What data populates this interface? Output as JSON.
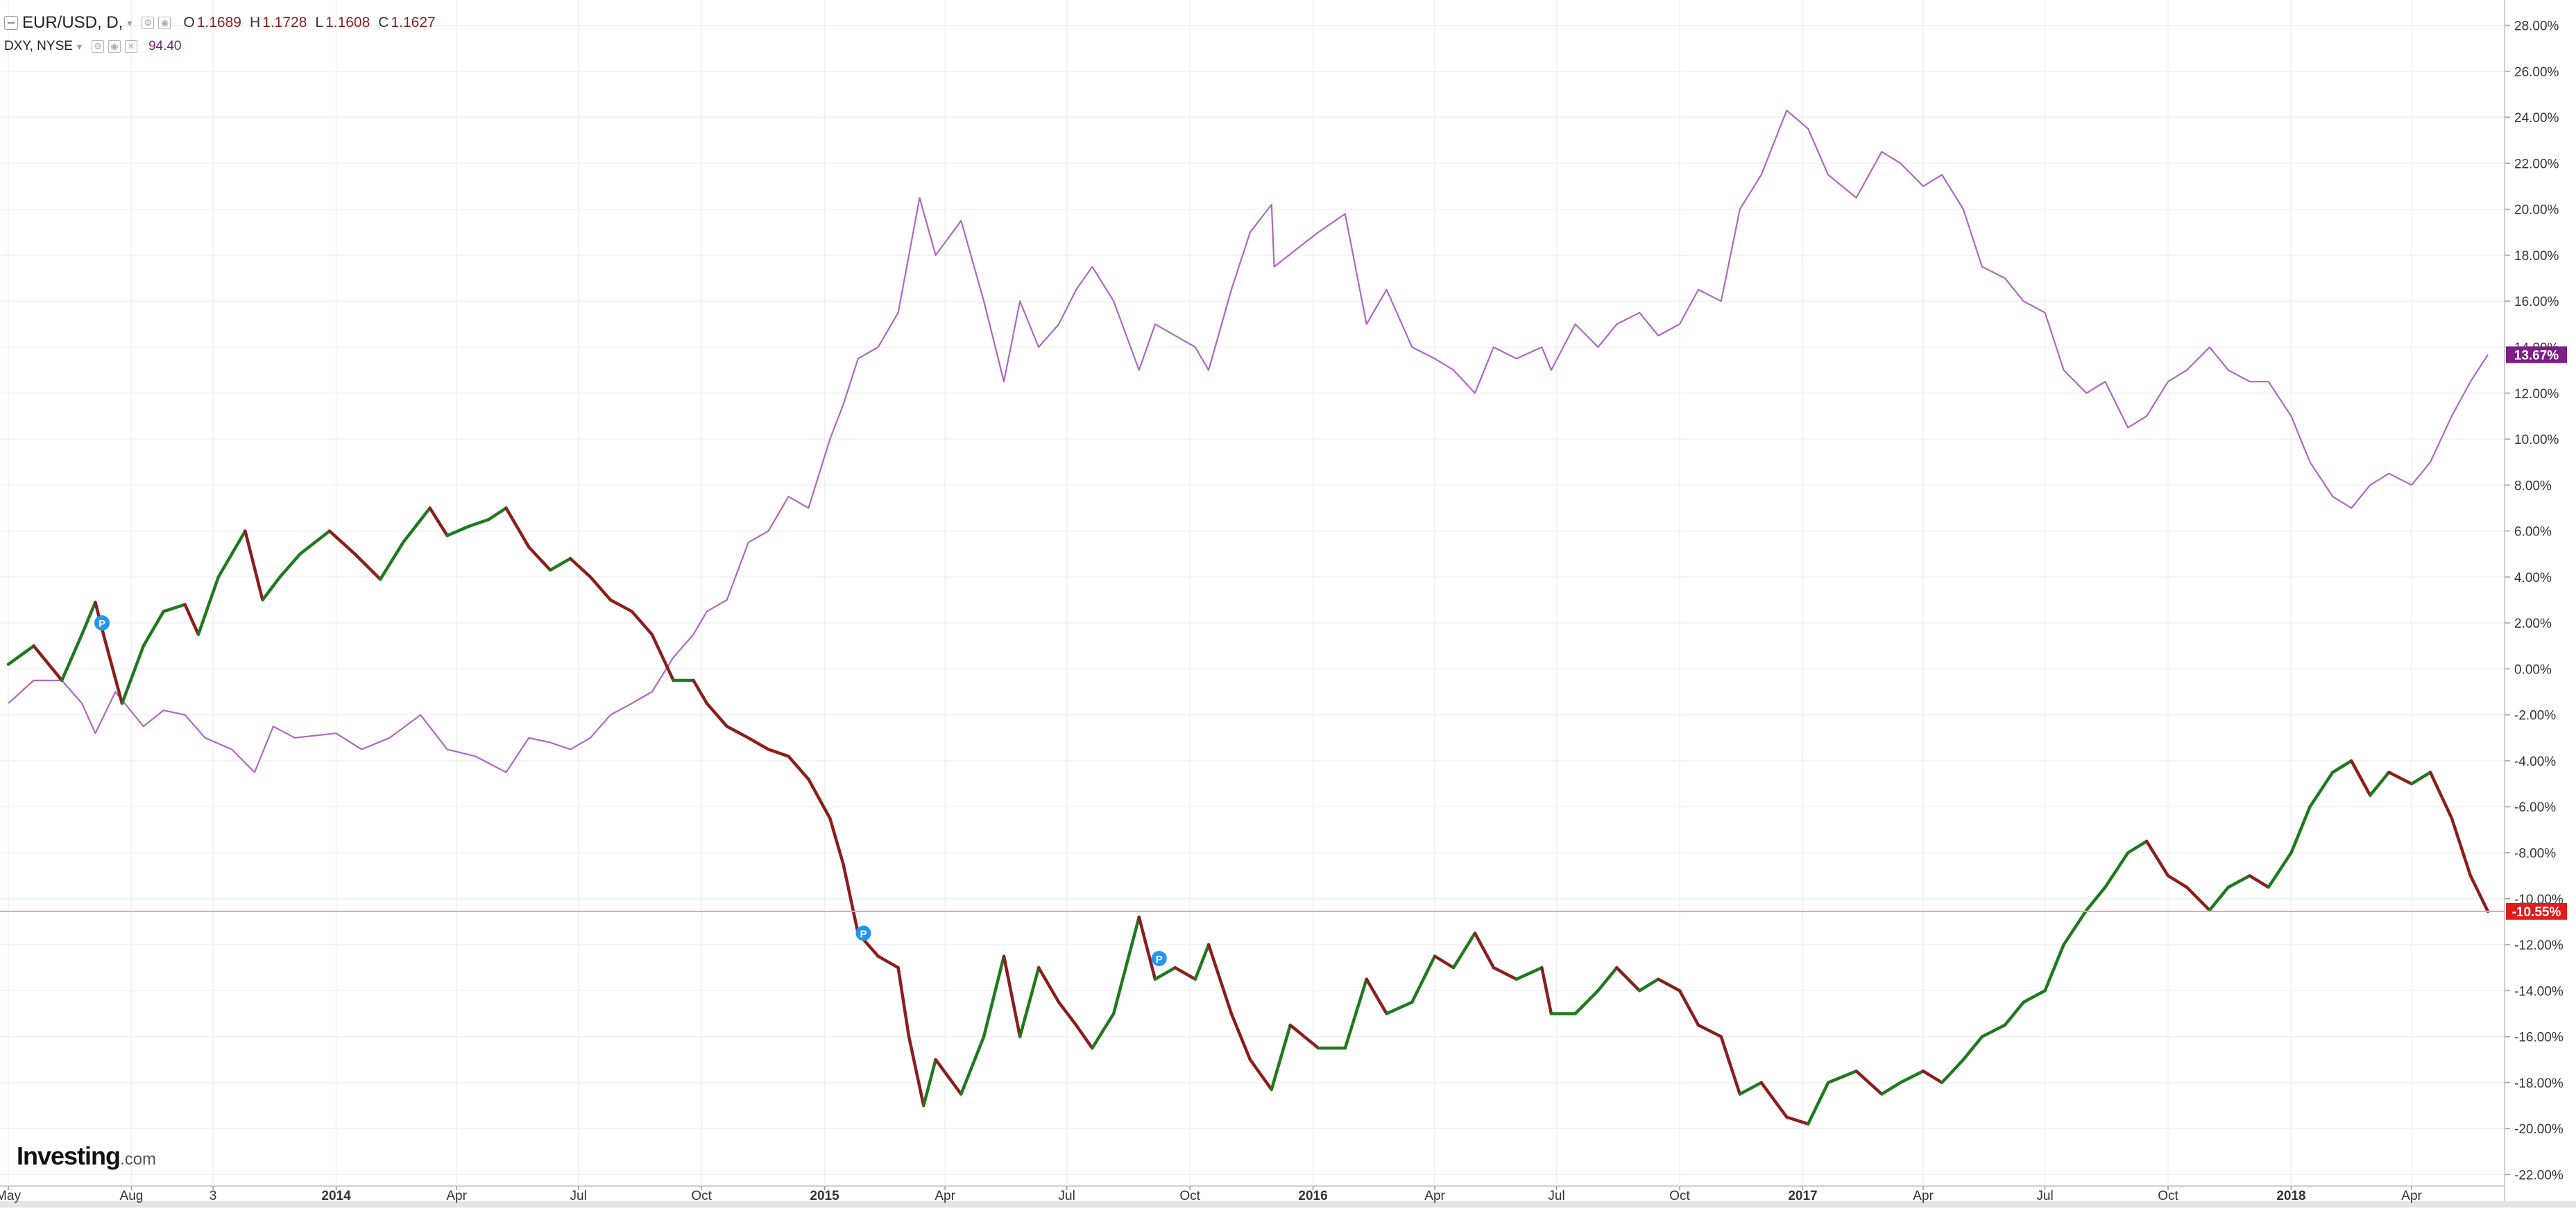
{
  "legend": {
    "main_symbol": "EUR/USD, D,",
    "open_key": "O",
    "open_value": "1.1689",
    "high_key": "H",
    "high_value": "1.1728",
    "low_key": "L",
    "low_value": "1.1608",
    "close_key": "C",
    "close_value": "1.1627",
    "compare_symbol": "DXY, NYSE",
    "compare_value": "94.40"
  },
  "watermark": {
    "brand": "Investing",
    "suffix": ".com"
  },
  "colors": {
    "up": "#1f7a1f",
    "down": "#8b1e1e",
    "dxy": "#b066c3",
    "dxy_tag": "#7b1f85",
    "eur_tag": "#e31b1b",
    "last_line": "#f4a3a3",
    "pin": "#2196f3",
    "grid": "#f1f1f1"
  },
  "chart_data": {
    "type": "line",
    "title": "",
    "y_unit": "%",
    "ylim": [
      -22.5,
      28.5
    ],
    "y_ticks": [
      "28.00%",
      "26.00%",
      "24.00%",
      "22.00%",
      "20.00%",
      "18.00%",
      "16.00%",
      "14.00%",
      "12.00%",
      "10.00%",
      "8.00%",
      "6.00%",
      "4.00%",
      "2.00%",
      "0.00%",
      "-2.00%",
      "-4.00%",
      "-6.00%",
      "-8.00%",
      "-10.00%",
      "-12.00%",
      "-14.00%",
      "-16.00%",
      "-18.00%",
      "-20.00%",
      "-22.00%"
    ],
    "x_range": [
      "2013-05-01",
      "2018-05-28"
    ],
    "x_ticks": [
      {
        "date": "2013-05-01",
        "label": "May"
      },
      {
        "date": "2013-08-01",
        "label": "Aug"
      },
      {
        "date": "2013-10-01",
        "label": "3"
      },
      {
        "date": "2014-01-01",
        "label": "2014"
      },
      {
        "date": "2014-04-01",
        "label": "Apr"
      },
      {
        "date": "2014-07-01",
        "label": "Jul"
      },
      {
        "date": "2014-10-01",
        "label": "Oct"
      },
      {
        "date": "2015-01-01",
        "label": "2015"
      },
      {
        "date": "2015-04-01",
        "label": "Apr"
      },
      {
        "date": "2015-07-01",
        "label": "Jul"
      },
      {
        "date": "2015-10-01",
        "label": "Oct"
      },
      {
        "date": "2016-01-01",
        "label": "2016"
      },
      {
        "date": "2016-04-01",
        "label": "Apr"
      },
      {
        "date": "2016-07-01",
        "label": "Jul"
      },
      {
        "date": "2016-10-01",
        "label": "Oct"
      },
      {
        "date": "2017-01-01",
        "label": "2017"
      },
      {
        "date": "2017-04-01",
        "label": "Apr"
      },
      {
        "date": "2017-07-01",
        "label": "Jul"
      },
      {
        "date": "2017-10-01",
        "label": "Oct"
      },
      {
        "date": "2018-01-01",
        "label": "2018"
      },
      {
        "date": "2018-04-01",
        "label": "Apr"
      }
    ],
    "bold_x_labels": [
      "2014",
      "2015",
      "2016",
      "2017",
      "2018"
    ],
    "series": [
      {
        "name": "EUR/USD, D,",
        "style": "candles",
        "last_label": "-10.55%",
        "points": [
          [
            "2013-05-01",
            0.2
          ],
          [
            "2013-05-20",
            1.0
          ],
          [
            "2013-06-10",
            -0.5
          ],
          [
            "2013-06-25",
            1.5
          ],
          [
            "2013-07-05",
            2.9
          ],
          [
            "2013-07-12",
            1.3
          ],
          [
            "2013-07-25",
            -1.5
          ],
          [
            "2013-08-10",
            1.0
          ],
          [
            "2013-08-25",
            2.5
          ],
          [
            "2013-09-10",
            2.8
          ],
          [
            "2013-09-20",
            1.5
          ],
          [
            "2013-10-05",
            4.0
          ],
          [
            "2013-10-25",
            6.0
          ],
          [
            "2013-11-07",
            3.0
          ],
          [
            "2013-11-20",
            4.0
          ],
          [
            "2013-12-05",
            5.0
          ],
          [
            "2013-12-27",
            6.0
          ],
          [
            "2014-01-15",
            5.0
          ],
          [
            "2014-02-03",
            3.9
          ],
          [
            "2014-02-20",
            5.5
          ],
          [
            "2014-03-12",
            7.0
          ],
          [
            "2014-03-25",
            5.8
          ],
          [
            "2014-04-10",
            6.2
          ],
          [
            "2014-04-25",
            6.5
          ],
          [
            "2014-05-08",
            7.0
          ],
          [
            "2014-05-25",
            5.3
          ],
          [
            "2014-06-10",
            4.3
          ],
          [
            "2014-06-25",
            4.8
          ],
          [
            "2014-07-10",
            4.0
          ],
          [
            "2014-07-25",
            3.0
          ],
          [
            "2014-08-10",
            2.5
          ],
          [
            "2014-08-25",
            1.5
          ],
          [
            "2014-09-10",
            -0.5
          ],
          [
            "2014-09-25",
            -0.5
          ],
          [
            "2014-10-05",
            -1.5
          ],
          [
            "2014-10-20",
            -2.5
          ],
          [
            "2014-11-05",
            -3.0
          ],
          [
            "2014-11-20",
            -3.5
          ],
          [
            "2014-12-05",
            -3.8
          ],
          [
            "2014-12-20",
            -4.8
          ],
          [
            "2015-01-05",
            -6.5
          ],
          [
            "2015-01-15",
            -8.5
          ],
          [
            "2015-01-26",
            -11.5
          ],
          [
            "2015-02-10",
            -12.5
          ],
          [
            "2015-02-25",
            -13.0
          ],
          [
            "2015-03-05",
            -16.0
          ],
          [
            "2015-03-16",
            -19.0
          ],
          [
            "2015-03-25",
            -17.0
          ],
          [
            "2015-04-13",
            -18.5
          ],
          [
            "2015-04-30",
            -16.0
          ],
          [
            "2015-05-15",
            -12.5
          ],
          [
            "2015-05-27",
            -16.0
          ],
          [
            "2015-06-10",
            -13.0
          ],
          [
            "2015-06-25",
            -14.5
          ],
          [
            "2015-07-08",
            -15.5
          ],
          [
            "2015-07-20",
            -16.5
          ],
          [
            "2015-08-05",
            -15.0
          ],
          [
            "2015-08-24",
            -10.8
          ],
          [
            "2015-09-05",
            -13.5
          ],
          [
            "2015-09-20",
            -13.0
          ],
          [
            "2015-10-05",
            -13.5
          ],
          [
            "2015-10-15",
            -12.0
          ],
          [
            "2015-11-01",
            -15.0
          ],
          [
            "2015-11-15",
            -17.0
          ],
          [
            "2015-12-01",
            -18.3
          ],
          [
            "2015-12-15",
            -15.5
          ],
          [
            "2016-01-05",
            -16.5
          ],
          [
            "2016-01-25",
            -16.5
          ],
          [
            "2016-02-10",
            -13.5
          ],
          [
            "2016-02-25",
            -15.0
          ],
          [
            "2016-03-15",
            -14.5
          ],
          [
            "2016-04-01",
            -12.5
          ],
          [
            "2016-04-15",
            -13.0
          ],
          [
            "2016-05-01",
            -11.5
          ],
          [
            "2016-05-15",
            -13.0
          ],
          [
            "2016-06-01",
            -13.5
          ],
          [
            "2016-06-20",
            -13.0
          ],
          [
            "2016-06-27",
            -15.0
          ],
          [
            "2016-07-15",
            -15.0
          ],
          [
            "2016-08-01",
            -14.0
          ],
          [
            "2016-08-15",
            -13.0
          ],
          [
            "2016-09-01",
            -14.0
          ],
          [
            "2016-09-15",
            -13.5
          ],
          [
            "2016-10-01",
            -14.0
          ],
          [
            "2016-10-15",
            -15.5
          ],
          [
            "2016-11-01",
            -16.0
          ],
          [
            "2016-11-15",
            -18.5
          ],
          [
            "2016-12-01",
            -18.0
          ],
          [
            "2016-12-20",
            -19.5
          ],
          [
            "2017-01-05",
            -19.8
          ],
          [
            "2017-01-20",
            -18.0
          ],
          [
            "2017-02-10",
            -17.5
          ],
          [
            "2017-03-01",
            -18.5
          ],
          [
            "2017-03-15",
            -18.0
          ],
          [
            "2017-04-01",
            -17.5
          ],
          [
            "2017-04-15",
            -18.0
          ],
          [
            "2017-05-01",
            -17.0
          ],
          [
            "2017-05-15",
            -16.0
          ],
          [
            "2017-06-01",
            -15.5
          ],
          [
            "2017-06-15",
            -14.5
          ],
          [
            "2017-07-01",
            -14.0
          ],
          [
            "2017-07-15",
            -12.0
          ],
          [
            "2017-08-01",
            -10.5
          ],
          [
            "2017-08-15",
            -9.5
          ],
          [
            "2017-09-01",
            -8.0
          ],
          [
            "2017-09-15",
            -7.5
          ],
          [
            "2017-10-01",
            -9.0
          ],
          [
            "2017-10-15",
            -9.5
          ],
          [
            "2017-11-01",
            -10.5
          ],
          [
            "2017-11-15",
            -9.5
          ],
          [
            "2017-12-01",
            -9.0
          ],
          [
            "2017-12-15",
            -9.5
          ],
          [
            "2018-01-01",
            -8.0
          ],
          [
            "2018-01-15",
            -6.0
          ],
          [
            "2018-02-01",
            -4.5
          ],
          [
            "2018-02-15",
            -4.0
          ],
          [
            "2018-03-01",
            -5.5
          ],
          [
            "2018-03-15",
            -4.5
          ],
          [
            "2018-04-01",
            -5.0
          ],
          [
            "2018-04-15",
            -4.5
          ],
          [
            "2018-05-01",
            -6.5
          ],
          [
            "2018-05-15",
            -9.0
          ],
          [
            "2018-05-28",
            -10.55
          ]
        ]
      },
      {
        "name": "DXY, NYSE",
        "style": "line",
        "last_label": "13.67%",
        "points": [
          [
            "2013-05-01",
            -1.5
          ],
          [
            "2013-05-20",
            -0.5
          ],
          [
            "2013-06-10",
            -0.5
          ],
          [
            "2013-06-25",
            -1.5
          ],
          [
            "2013-07-05",
            -2.8
          ],
          [
            "2013-07-20",
            -1.0
          ],
          [
            "2013-08-10",
            -2.5
          ],
          [
            "2013-08-25",
            -1.8
          ],
          [
            "2013-09-10",
            -2.0
          ],
          [
            "2013-09-25",
            -3.0
          ],
          [
            "2013-10-15",
            -3.5
          ],
          [
            "2013-11-01",
            -4.5
          ],
          [
            "2013-11-15",
            -2.5
          ],
          [
            "2013-12-01",
            -3.0
          ],
          [
            "2014-01-01",
            -2.8
          ],
          [
            "2014-01-20",
            -3.5
          ],
          [
            "2014-02-10",
            -3.0
          ],
          [
            "2014-03-05",
            -2.0
          ],
          [
            "2014-03-25",
            -3.5
          ],
          [
            "2014-04-15",
            -3.8
          ],
          [
            "2014-05-08",
            -4.5
          ],
          [
            "2014-05-25",
            -3.0
          ],
          [
            "2014-06-10",
            -3.2
          ],
          [
            "2014-06-25",
            -3.5
          ],
          [
            "2014-07-10",
            -3.0
          ],
          [
            "2014-07-25",
            -2.0
          ],
          [
            "2014-08-10",
            -1.5
          ],
          [
            "2014-08-25",
            -1.0
          ],
          [
            "2014-09-10",
            0.5
          ],
          [
            "2014-09-25",
            1.5
          ],
          [
            "2014-10-05",
            2.5
          ],
          [
            "2014-10-20",
            3.0
          ],
          [
            "2014-11-05",
            5.5
          ],
          [
            "2014-11-20",
            6.0
          ],
          [
            "2014-12-05",
            7.5
          ],
          [
            "2014-12-20",
            7.0
          ],
          [
            "2015-01-05",
            10.0
          ],
          [
            "2015-01-15",
            11.5
          ],
          [
            "2015-01-26",
            13.5
          ],
          [
            "2015-02-10",
            14.0
          ],
          [
            "2015-02-25",
            15.5
          ],
          [
            "2015-03-05",
            18.0
          ],
          [
            "2015-03-13",
            20.5
          ],
          [
            "2015-03-25",
            18.0
          ],
          [
            "2015-04-13",
            19.5
          ],
          [
            "2015-04-30",
            16.0
          ],
          [
            "2015-05-15",
            12.5
          ],
          [
            "2015-05-27",
            16.0
          ],
          [
            "2015-06-10",
            14.0
          ],
          [
            "2015-06-25",
            15.0
          ],
          [
            "2015-07-08",
            16.5
          ],
          [
            "2015-07-20",
            17.5
          ],
          [
            "2015-08-05",
            16.0
          ],
          [
            "2015-08-24",
            13.0
          ],
          [
            "2015-09-05",
            15.0
          ],
          [
            "2015-09-20",
            14.5
          ],
          [
            "2015-10-05",
            14.0
          ],
          [
            "2015-10-15",
            13.0
          ],
          [
            "2015-11-01",
            16.5
          ],
          [
            "2015-11-15",
            19.0
          ],
          [
            "2015-12-01",
            20.2
          ],
          [
            "2015-12-03",
            17.5
          ],
          [
            "2016-01-05",
            19.0
          ],
          [
            "2016-01-25",
            19.8
          ],
          [
            "2016-02-10",
            15.0
          ],
          [
            "2016-02-25",
            16.5
          ],
          [
            "2016-03-15",
            14.0
          ],
          [
            "2016-04-01",
            13.5
          ],
          [
            "2016-04-15",
            13.0
          ],
          [
            "2016-05-01",
            12.0
          ],
          [
            "2016-05-15",
            14.0
          ],
          [
            "2016-06-01",
            13.5
          ],
          [
            "2016-06-20",
            14.0
          ],
          [
            "2016-06-27",
            13.0
          ],
          [
            "2016-07-15",
            15.0
          ],
          [
            "2016-08-01",
            14.0
          ],
          [
            "2016-08-15",
            15.0
          ],
          [
            "2016-09-01",
            15.5
          ],
          [
            "2016-09-15",
            14.5
          ],
          [
            "2016-10-01",
            15.0
          ],
          [
            "2016-10-15",
            16.5
          ],
          [
            "2016-11-01",
            16.0
          ],
          [
            "2016-11-15",
            20.0
          ],
          [
            "2016-12-01",
            21.5
          ],
          [
            "2016-12-20",
            24.3
          ],
          [
            "2017-01-05",
            23.5
          ],
          [
            "2017-01-20",
            21.5
          ],
          [
            "2017-02-10",
            20.5
          ],
          [
            "2017-03-01",
            22.5
          ],
          [
            "2017-03-15",
            22.0
          ],
          [
            "2017-04-01",
            21.0
          ],
          [
            "2017-04-15",
            21.5
          ],
          [
            "2017-05-01",
            20.0
          ],
          [
            "2017-05-15",
            17.5
          ],
          [
            "2017-06-01",
            17.0
          ],
          [
            "2017-06-15",
            16.0
          ],
          [
            "2017-07-01",
            15.5
          ],
          [
            "2017-07-15",
            13.0
          ],
          [
            "2017-08-01",
            12.0
          ],
          [
            "2017-08-15",
            12.5
          ],
          [
            "2017-09-01",
            10.5
          ],
          [
            "2017-09-15",
            11.0
          ],
          [
            "2017-10-01",
            12.5
          ],
          [
            "2017-10-15",
            13.0
          ],
          [
            "2017-11-01",
            14.0
          ],
          [
            "2017-11-15",
            13.0
          ],
          [
            "2017-12-01",
            12.5
          ],
          [
            "2017-12-15",
            12.5
          ],
          [
            "2018-01-01",
            11.0
          ],
          [
            "2018-01-15",
            9.0
          ],
          [
            "2018-02-01",
            7.5
          ],
          [
            "2018-02-15",
            7.0
          ],
          [
            "2018-03-01",
            8.0
          ],
          [
            "2018-03-15",
            8.5
          ],
          [
            "2018-04-01",
            8.0
          ],
          [
            "2018-04-15",
            9.0
          ],
          [
            "2018-05-01",
            11.0
          ],
          [
            "2018-05-15",
            12.5
          ],
          [
            "2018-05-28",
            13.67
          ]
        ]
      }
    ],
    "event_markers": [
      {
        "date": "2013-07-10",
        "value": 2.0,
        "label": "P"
      },
      {
        "date": "2015-01-30",
        "value": -11.5,
        "label": "P"
      },
      {
        "date": "2015-09-08",
        "value": -12.6,
        "label": "P"
      }
    ],
    "reference_line": -10.55
  }
}
